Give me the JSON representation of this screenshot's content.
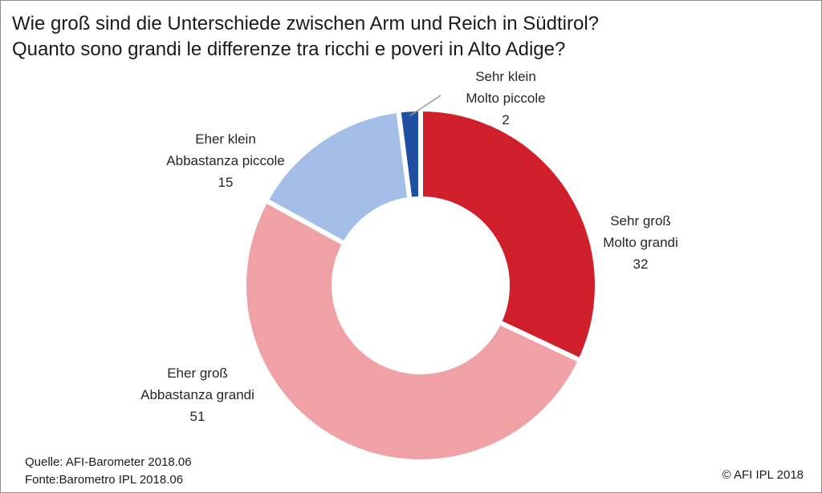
{
  "title_line1": "Wie groß sind die Unterschiede zwischen Arm und Reich in Südtirol?",
  "title_line2": "Quanto sono grandi le differenze tra ricchi e poveri in Alto Adige?",
  "source_line1": "Quelle: AFI-Barometer 2018.06",
  "source_line2": "Fonte:Barometro  IPL 2018.06",
  "copyright": "© AFI IPL 2018",
  "chart_data": {
    "type": "donut",
    "slices": [
      {
        "label_de": "Sehr groß",
        "label_it": "Molto grandi",
        "value": 32,
        "color": "#cf1f2a"
      },
      {
        "label_de": "Eher groß",
        "label_it": "Abbastanza grandi",
        "value": 51,
        "color": "#f0a1a6"
      },
      {
        "label_de": "Eher klein",
        "label_it": "Abbastanza piccole",
        "value": 15,
        "color": "#a3bfe8"
      },
      {
        "label_de": "Sehr klein",
        "label_it": "Molto piccole",
        "value": 2,
        "color": "#1f4fa0"
      }
    ]
  }
}
